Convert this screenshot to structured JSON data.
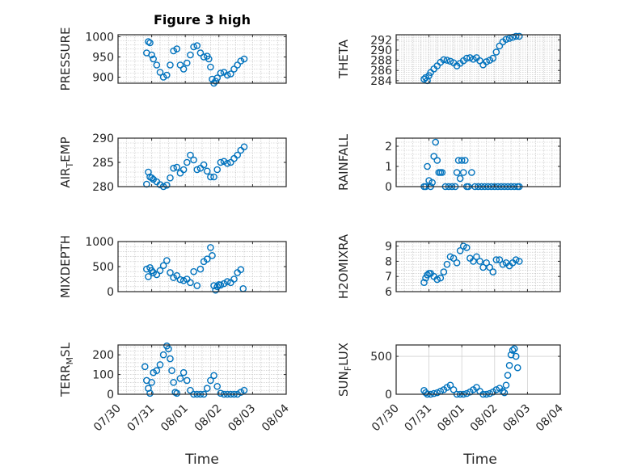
{
  "figure_title": "Figure 3 high",
  "colors": {
    "marker": "#0072BD",
    "axes": "#262626"
  },
  "x_ticks": [
    "07/30",
    "07/31",
    "08/01",
    "08/02",
    "08/03",
    "08/04"
  ],
  "x_label": "Time",
  "chart_data": [
    {
      "type": "scatter",
      "ylabel": "PRESSURE",
      "ylim": [
        885,
        1005
      ],
      "yticks": [
        900,
        950,
        1000
      ],
      "grid": "minor",
      "x": [
        0.85,
        0.9,
        0.95,
        1.0,
        1.05,
        1.15,
        1.25,
        1.35,
        1.45,
        1.55,
        1.65,
        1.75,
        1.85,
        1.95,
        2.05,
        2.15,
        2.25,
        2.35,
        2.45,
        2.55,
        2.65,
        2.7,
        2.75,
        2.8,
        2.85,
        2.9,
        2.95,
        3.05,
        3.15,
        3.25,
        3.35,
        3.45,
        3.55,
        3.65,
        3.75
      ],
      "y": [
        960,
        988,
        985,
        955,
        945,
        930,
        912,
        900,
        905,
        930,
        965,
        970,
        930,
        920,
        935,
        955,
        975,
        978,
        960,
        950,
        952,
        945,
        925,
        895,
        885,
        890,
        898,
        910,
        912,
        905,
        908,
        920,
        930,
        940,
        945
      ]
    },
    {
      "type": "scatter",
      "ylabel": "THETA",
      "ylim": [
        283.5,
        293
      ],
      "yticks": [
        284,
        286,
        288,
        290,
        292
      ],
      "grid": "minor",
      "x": [
        0.85,
        0.9,
        0.95,
        1.0,
        1.05,
        1.15,
        1.25,
        1.35,
        1.45,
        1.55,
        1.65,
        1.75,
        1.85,
        1.95,
        2.05,
        2.15,
        2.25,
        2.35,
        2.45,
        2.55,
        2.65,
        2.75,
        2.85,
        2.95,
        3.05,
        3.15,
        3.25,
        3.35,
        3.45,
        3.55,
        3.65,
        3.75
      ],
      "y": [
        284.3,
        284.6,
        284.0,
        285.0,
        285.6,
        286.3,
        286.9,
        287.6,
        288.1,
        288.0,
        287.8,
        287.5,
        286.9,
        287.4,
        287.9,
        288.4,
        288.5,
        288.2,
        288.5,
        287.9,
        287.1,
        287.7,
        288.0,
        288.4,
        289.6,
        290.8,
        291.6,
        292.1,
        292.3,
        292.5,
        292.7,
        292.7
      ]
    },
    {
      "type": "scatter",
      "ylabel": "AIR_TEMP",
      "ylim": [
        280,
        290
      ],
      "yticks": [
        280,
        285,
        290
      ],
      "grid": "minor",
      "x": [
        0.85,
        0.9,
        0.95,
        1.0,
        1.05,
        1.15,
        1.25,
        1.35,
        1.45,
        1.55,
        1.65,
        1.75,
        1.85,
        1.95,
        2.05,
        2.15,
        2.25,
        2.35,
        2.45,
        2.55,
        2.65,
        2.75,
        2.85,
        2.95,
        3.05,
        3.15,
        3.25,
        3.35,
        3.45,
        3.55,
        3.65,
        3.75
      ],
      "y": [
        280.5,
        283.0,
        282.0,
        281.8,
        281.5,
        281.0,
        280.4,
        280.0,
        280.3,
        281.8,
        283.8,
        284.0,
        282.8,
        283.5,
        285.0,
        286.5,
        285.5,
        283.5,
        283.8,
        284.5,
        283.2,
        282.0,
        282.0,
        283.5,
        285.0,
        285.2,
        284.8,
        285.0,
        285.8,
        286.5,
        287.5,
        288.2
      ]
    },
    {
      "type": "scatter",
      "ylabel": "RAINFALL",
      "ylim": [
        0,
        2.4
      ],
      "yticks": [
        0,
        1,
        2
      ],
      "grid": "minor",
      "x": [
        0.85,
        0.9,
        0.95,
        1.0,
        1.05,
        1.1,
        1.15,
        1.2,
        1.25,
        1.3,
        1.35,
        1.4,
        1.5,
        1.6,
        1.7,
        1.8,
        1.85,
        1.9,
        1.95,
        2.0,
        2.05,
        2.1,
        2.15,
        2.2,
        2.3,
        2.4,
        2.5,
        2.6,
        2.7,
        2.8,
        2.9,
        3.0,
        3.1,
        3.2,
        3.3,
        3.4,
        3.5,
        3.6,
        3.7,
        3.75
      ],
      "y": [
        0,
        0,
        1.0,
        0.3,
        0,
        0.2,
        1.5,
        2.2,
        1.3,
        0.7,
        0.7,
        0.7,
        0,
        0,
        0,
        0,
        0.7,
        1.3,
        0.4,
        1.3,
        0.7,
        1.3,
        0,
        0,
        0.7,
        0,
        0,
        0,
        0,
        0,
        0,
        0,
        0,
        0,
        0,
        0,
        0,
        0,
        0,
        0
      ]
    },
    {
      "type": "scatter",
      "ylabel": "MIXDEPTH",
      "ylim": [
        0,
        1000
      ],
      "yticks": [
        0,
        500,
        1000
      ],
      "grid": "minor",
      "x": [
        0.85,
        0.9,
        0.95,
        1.0,
        1.05,
        1.15,
        1.25,
        1.35,
        1.45,
        1.55,
        1.65,
        1.75,
        1.85,
        1.95,
        2.05,
        2.15,
        2.25,
        2.35,
        2.45,
        2.55,
        2.65,
        2.75,
        2.8,
        2.85,
        2.9,
        2.95,
        3.0,
        3.05,
        3.15,
        3.25,
        3.35,
        3.45,
        3.55,
        3.65,
        3.72
      ],
      "y": [
        450,
        300,
        480,
        420,
        380,
        340,
        420,
        520,
        620,
        380,
        280,
        320,
        240,
        220,
        250,
        180,
        400,
        120,
        450,
        600,
        650,
        880,
        720,
        120,
        30,
        100,
        140,
        130,
        160,
        200,
        180,
        250,
        380,
        440,
        60
      ]
    },
    {
      "type": "scatter",
      "ylabel": "H2OMIXRA",
      "ylim": [
        6,
        9.3
      ],
      "yticks": [
        6,
        7,
        8,
        9
      ],
      "grid": "minor",
      "x": [
        0.85,
        0.9,
        0.95,
        1.0,
        1.05,
        1.15,
        1.25,
        1.35,
        1.45,
        1.55,
        1.65,
        1.75,
        1.85,
        1.95,
        2.05,
        2.15,
        2.25,
        2.35,
        2.45,
        2.55,
        2.65,
        2.75,
        2.85,
        2.95,
        3.05,
        3.15,
        3.25,
        3.35,
        3.45,
        3.55,
        3.65,
        3.75
      ],
      "y": [
        6.6,
        6.9,
        7.1,
        7.2,
        7.2,
        7.0,
        6.8,
        6.9,
        7.3,
        7.8,
        8.3,
        8.2,
        7.9,
        8.7,
        9.0,
        8.9,
        8.2,
        8.0,
        8.3,
        8.0,
        7.6,
        7.9,
        7.6,
        7.3,
        8.1,
        8.1,
        7.8,
        7.9,
        7.7,
        7.9,
        8.1,
        8.0
      ]
    },
    {
      "type": "scatter",
      "ylabel": "TERR_MSL",
      "ylim": [
        0,
        250
      ],
      "yticks": [
        0,
        100,
        200
      ],
      "grid": "minor",
      "x": [
        0.8,
        0.85,
        0.9,
        0.95,
        1.0,
        1.05,
        1.15,
        1.25,
        1.35,
        1.45,
        1.5,
        1.55,
        1.6,
        1.65,
        1.7,
        1.75,
        1.85,
        1.95,
        2.05,
        2.15,
        2.25,
        2.35,
        2.45,
        2.55,
        2.65,
        2.75,
        2.85,
        2.95,
        3.05,
        3.15,
        3.25,
        3.35,
        3.45,
        3.55,
        3.65,
        3.75
      ],
      "y": [
        140,
        70,
        30,
        5,
        60,
        110,
        120,
        150,
        200,
        245,
        230,
        180,
        120,
        60,
        10,
        5,
        80,
        110,
        70,
        20,
        0,
        0,
        0,
        0,
        30,
        70,
        95,
        40,
        5,
        0,
        0,
        0,
        0,
        0,
        10,
        20
      ]
    },
    {
      "type": "scatter",
      "ylabel": "SUN_FLUX",
      "ylim": [
        0,
        650
      ],
      "yticks": [
        0,
        500
      ],
      "grid": "major",
      "x": [
        0.85,
        0.9,
        0.95,
        1.05,
        1.15,
        1.25,
        1.35,
        1.45,
        1.55,
        1.65,
        1.75,
        1.85,
        1.95,
        2.05,
        2.15,
        2.25,
        2.35,
        2.45,
        2.55,
        2.65,
        2.75,
        2.85,
        2.95,
        3.05,
        3.15,
        3.25,
        3.3,
        3.35,
        3.4,
        3.45,
        3.5,
        3.55,
        3.6,
        3.65,
        3.7
      ],
      "y": [
        50,
        20,
        0,
        0,
        10,
        20,
        40,
        60,
        90,
        120,
        60,
        0,
        0,
        0,
        10,
        30,
        60,
        90,
        40,
        0,
        0,
        10,
        30,
        60,
        80,
        40,
        20,
        120,
        250,
        380,
        520,
        580,
        600,
        500,
        350
      ]
    }
  ]
}
